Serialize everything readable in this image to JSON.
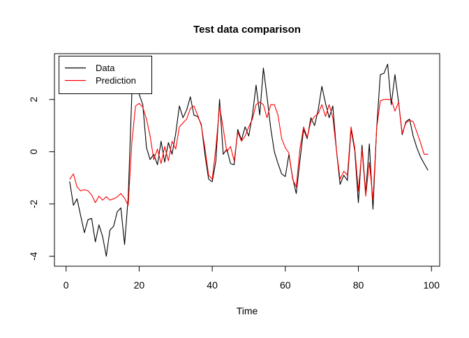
{
  "figure": {
    "background": "#FFFFFF",
    "axis_color": "#000000"
  },
  "chart_data": {
    "type": "line",
    "title": "Test data comparison",
    "xlabel": "Time",
    "ylabel": "",
    "x_start": 1,
    "x_ticks": [
      0,
      20,
      40,
      60,
      80,
      100
    ],
    "y_ticks": [
      -4,
      -2,
      0,
      2
    ],
    "xlim": [
      -3.2,
      102.3
    ],
    "ylim": [
      -4.38,
      3.75
    ],
    "grid": false,
    "legend_position": "topleft",
    "series": [
      {
        "name": "Data",
        "color": "#000000",
        "values": [
          -1.15,
          -2.05,
          -1.8,
          -2.45,
          -3.1,
          -2.6,
          -2.55,
          -3.45,
          -2.8,
          -3.25,
          -4.0,
          -3.0,
          -2.85,
          -2.3,
          -2.15,
          -3.55,
          -1.75,
          2.2,
          2.6,
          2.2,
          1.8,
          0.15,
          -0.3,
          -0.1,
          -0.5,
          0.4,
          -0.4,
          0.35,
          -0.1,
          0.7,
          1.75,
          1.3,
          1.6,
          2.1,
          1.4,
          1.35,
          1.05,
          -0.1,
          -1.05,
          -1.15,
          -0.35,
          2.0,
          -0.1,
          0.1,
          -0.45,
          -0.5,
          0.85,
          0.45,
          0.95,
          0.6,
          1.4,
          2.55,
          1.4,
          3.2,
          2.1,
          0.9,
          0.0,
          -0.45,
          -0.85,
          -0.95,
          -0.1,
          -1.0,
          -1.6,
          -0.35,
          0.85,
          0.5,
          1.3,
          1.0,
          1.6,
          2.5,
          1.85,
          1.3,
          1.75,
          0.05,
          -1.25,
          -0.9,
          -1.1,
          0.85,
          0.05,
          -1.95,
          0.25,
          -1.6,
          0.3,
          -2.2,
          0.9,
          2.95,
          3.0,
          3.35,
          1.8,
          2.95,
          1.9,
          0.65,
          1.15,
          1.25,
          0.6,
          0.15,
          -0.2,
          -0.45,
          -0.7
        ]
      },
      {
        "name": "Prediction",
        "color": "#FF0000",
        "values": [
          -1.05,
          -0.85,
          -1.35,
          -1.5,
          -1.45,
          -1.5,
          -1.65,
          -1.95,
          -1.7,
          -1.85,
          -1.72,
          -1.85,
          -1.8,
          -1.73,
          -1.6,
          -1.78,
          -2.05,
          0.35,
          1.75,
          1.85,
          1.7,
          1.25,
          0.6,
          -0.3,
          0.1,
          -0.45,
          0.2,
          -0.35,
          0.4,
          0.1,
          0.95,
          1.1,
          1.25,
          1.65,
          1.75,
          1.4,
          1.0,
          0.15,
          -0.9,
          -1.05,
          0.15,
          1.75,
          0.9,
          0.0,
          0.2,
          -0.35,
          0.75,
          0.4,
          0.6,
          0.95,
          1.25,
          1.8,
          1.9,
          1.8,
          1.3,
          1.8,
          1.8,
          1.4,
          0.5,
          0.15,
          -0.05,
          -1.05,
          -1.35,
          0.1,
          0.95,
          0.55,
          1.15,
          1.35,
          1.45,
          1.8,
          1.35,
          1.8,
          1.3,
          0.05,
          -1.05,
          -0.75,
          -0.9,
          0.95,
          0.15,
          -1.5,
          0.1,
          -1.7,
          -0.4,
          -1.85,
          0.9,
          1.95,
          2.0,
          2.0,
          2.0,
          1.55,
          1.9,
          0.7,
          1.1,
          1.2,
          1.15,
          0.75,
          0.35,
          -0.1,
          -0.1
        ]
      }
    ]
  }
}
